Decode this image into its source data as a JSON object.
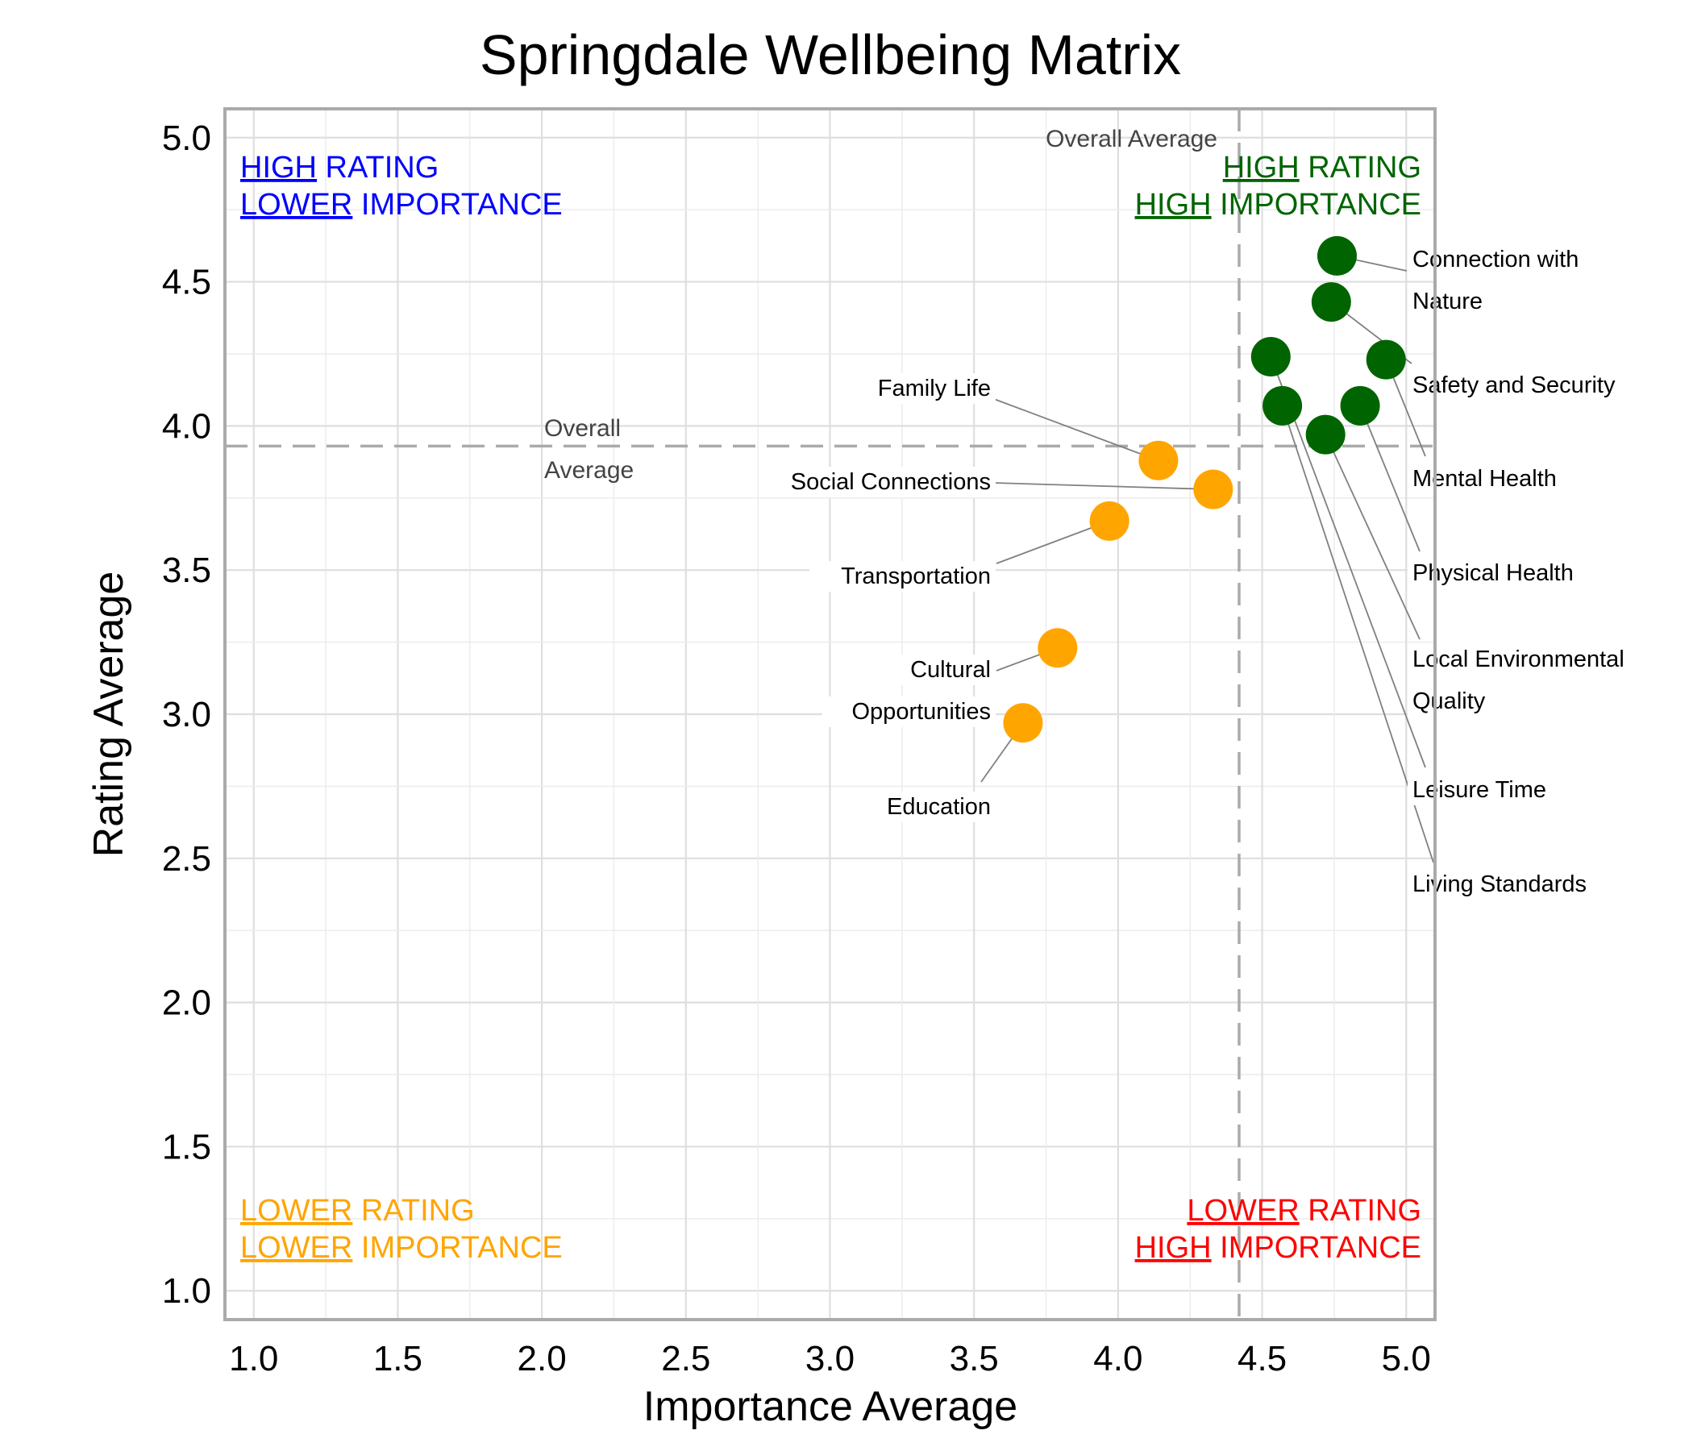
{
  "chart_data": {
    "type": "scatter",
    "title": "Springdale Wellbeing Matrix",
    "xlabel": "Importance Average",
    "ylabel": "Rating Average",
    "xlim": [
      0.9,
      5.1
    ],
    "ylim": [
      0.9,
      5.1
    ],
    "xticks": [
      "1.0",
      "1.5",
      "2.0",
      "2.5",
      "3.0",
      "3.5",
      "4.0",
      "4.5",
      "5.0"
    ],
    "yticks": [
      "1.0",
      "1.5",
      "2.0",
      "2.5",
      "3.0",
      "3.5",
      "4.0",
      "4.5",
      "5.0"
    ],
    "grid": true,
    "overall_average": {
      "x": 4.42,
      "y": 3.93,
      "x_label": "Overall Average",
      "y_label_lines": [
        "Overall",
        "Average"
      ]
    },
    "colors": {
      "high_high": "#006400",
      "low_low": "#FFA500",
      "high_low": "#0000FF",
      "low_high": "#FF0000",
      "reference": "#AAAAAA"
    },
    "quadrants": {
      "top_left": {
        "color": "#0000FF",
        "lines": [
          {
            "u": "HIGH",
            "rest": " RATING"
          },
          {
            "u": "LOWER",
            "rest": " IMPORTANCE"
          }
        ]
      },
      "top_right": {
        "color": "#006400",
        "lines": [
          {
            "u": "HIGH",
            "rest": " RATING"
          },
          {
            "u": "HIGH",
            "rest": " IMPORTANCE"
          }
        ]
      },
      "bottom_left": {
        "color": "#FFA500",
        "lines": [
          {
            "u": "LOWER",
            "rest": " RATING"
          },
          {
            "u": "LOWER",
            "rest": " IMPORTANCE"
          }
        ]
      },
      "bottom_right": {
        "color": "#FF0000",
        "lines": [
          {
            "u": "LOWER",
            "rest": " RATING"
          },
          {
            "u": "HIGH",
            "rest": " IMPORTANCE"
          }
        ]
      }
    },
    "points": [
      {
        "label": [
          "Connection with",
          "Nature"
        ],
        "x": 4.76,
        "y": 4.59,
        "group": "high_high"
      },
      {
        "label": [
          "Safety and Security"
        ],
        "x": 4.74,
        "y": 4.43,
        "group": "high_high"
      },
      {
        "label": [
          "Mental Health"
        ],
        "x": 4.93,
        "y": 4.23,
        "group": "high_high"
      },
      {
        "label": [
          "Physical Health"
        ],
        "x": 4.84,
        "y": 4.07,
        "group": "high_high"
      },
      {
        "label": [
          "Local Environmental",
          "Quality"
        ],
        "x": 4.72,
        "y": 3.97,
        "group": "high_high"
      },
      {
        "label": [
          "Leisure Time"
        ],
        "x": 4.53,
        "y": 4.24,
        "group": "high_high"
      },
      {
        "label": [
          "Living Standards"
        ],
        "x": 4.57,
        "y": 4.07,
        "group": "high_high"
      },
      {
        "label": [
          "Family Life"
        ],
        "x": 4.14,
        "y": 3.88,
        "group": "low_low"
      },
      {
        "label": [
          "Social Connections"
        ],
        "x": 4.33,
        "y": 3.78,
        "group": "low_low"
      },
      {
        "label": [
          "Transportation"
        ],
        "x": 3.97,
        "y": 3.67,
        "group": "low_low"
      },
      {
        "label": [
          "Cultural",
          "Opportunities"
        ],
        "x": 3.79,
        "y": 3.23,
        "group": "low_low"
      },
      {
        "label": [
          "Education"
        ],
        "x": 3.67,
        "y": 2.97,
        "group": "low_low"
      }
    ]
  }
}
